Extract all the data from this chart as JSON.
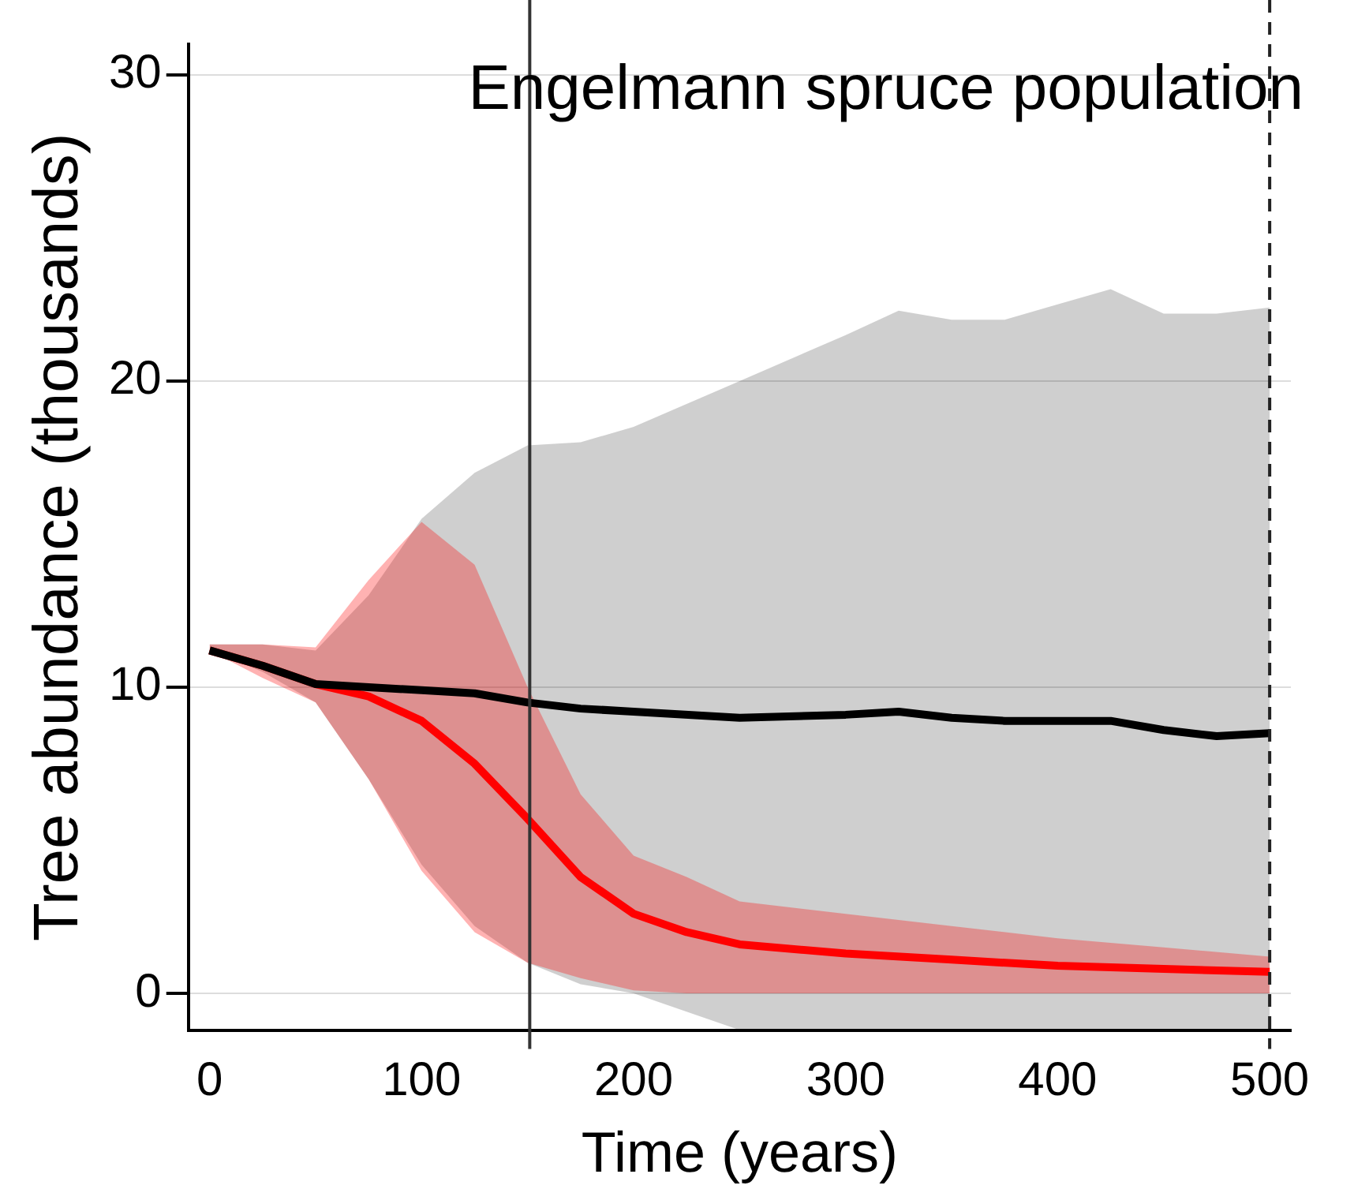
{
  "chart_data": {
    "type": "line",
    "title": "Engelmann spruce population",
    "xlabel": "Time (years)",
    "ylabel": "Tree abundance (thousands)",
    "xlim": [
      -10,
      510
    ],
    "xticks": [
      0,
      100,
      200,
      300,
      400,
      500
    ],
    "ylim": [
      -1.2,
      31
    ],
    "yticks": [
      0,
      10,
      20,
      30
    ],
    "grid": "y",
    "legend": false,
    "marker": "none",
    "line_style": "solid",
    "series": [
      {
        "color": "#000000",
        "x": [
          0,
          25,
          50,
          75,
          100,
          125,
          150,
          175,
          200,
          250,
          300,
          325,
          350,
          375,
          400,
          425,
          450,
          475,
          500
        ],
        "values": [
          11.2,
          10.7,
          10.1,
          10.0,
          9.9,
          9.8,
          9.5,
          9.3,
          9.2,
          9.0,
          9.1,
          9.2,
          9.0,
          8.9,
          8.9,
          8.9,
          8.6,
          8.4,
          8.5
        ],
        "lower": [
          11.2,
          10.5,
          9.5,
          7.0,
          4.2,
          2.2,
          1.0,
          0.3,
          0,
          -1.2,
          -1.2,
          -1.2,
          -1.2,
          -1.2,
          -1.2,
          -1.2,
          -1.2,
          -1.2,
          -1.2
        ],
        "upper": [
          11.4,
          11.4,
          11.2,
          13.0,
          15.5,
          17.0,
          17.9,
          18.0,
          18.5,
          20.0,
          21.5,
          22.3,
          22.0,
          22.0,
          22.5,
          23.0,
          22.2,
          22.2,
          22.4
        ]
      },
      {
        "color": "#ff0000",
        "x": [
          0,
          25,
          50,
          75,
          100,
          125,
          150,
          175,
          200,
          225,
          250,
          300,
          350,
          400,
          450,
          500
        ],
        "values": [
          11.2,
          10.7,
          10.1,
          9.7,
          8.9,
          7.5,
          5.7,
          3.8,
          2.6,
          2.0,
          1.6,
          1.3,
          1.1,
          0.9,
          0.8,
          0.7
        ],
        "lower": [
          11.2,
          10.3,
          9.5,
          7.0,
          4.0,
          2.0,
          1.0,
          0.5,
          0.1,
          0,
          0,
          0,
          0,
          0,
          0,
          0
        ],
        "upper": [
          11.4,
          11.4,
          11.3,
          13.5,
          15.4,
          14.0,
          10.0,
          6.5,
          4.5,
          3.8,
          3.0,
          2.6,
          2.2,
          1.8,
          1.5,
          1.2
        ]
      }
    ],
    "ref_lines": [
      {
        "axis": "x",
        "value": 151,
        "line_style": "solid",
        "color": "#333333"
      },
      {
        "axis": "x",
        "value": 500,
        "line_style": "dashed",
        "color": "#222222"
      }
    ]
  }
}
